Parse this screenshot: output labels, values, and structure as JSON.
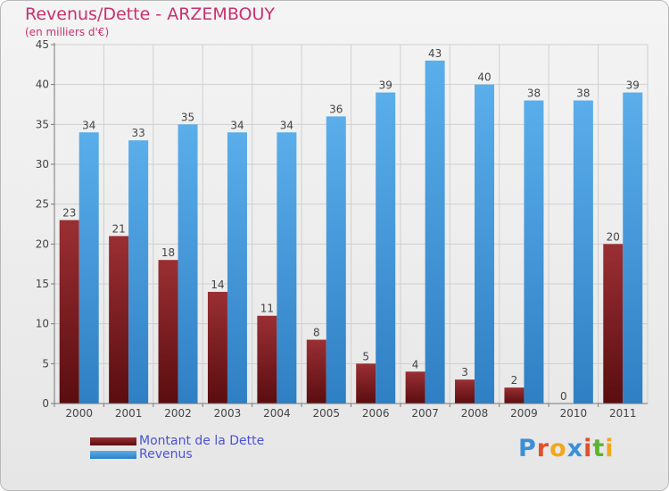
{
  "title": "Revenus/Dette - ARZEMBOUY",
  "subtitle": "(en milliers d'€)",
  "brand": "Proxiti",
  "chart_data": {
    "type": "bar",
    "categories": [
      "2000",
      "2001",
      "2002",
      "2003",
      "2004",
      "2005",
      "2006",
      "2007",
      "2008",
      "2009",
      "2010",
      "2011"
    ],
    "series": [
      {
        "name": "Montant de la Dette",
        "values": [
          23,
          21,
          18,
          14,
          11,
          8,
          5,
          4,
          3,
          2,
          0,
          20
        ],
        "color": "#7a1a1e"
      },
      {
        "name": "Revenus",
        "values": [
          34,
          33,
          35,
          34,
          34,
          36,
          39,
          43,
          40,
          38,
          38,
          39
        ],
        "color": "#4a9fe0"
      }
    ],
    "ylim": [
      0,
      45
    ],
    "yticks": [
      0,
      5,
      10,
      15,
      20,
      25,
      30,
      35,
      40,
      45
    ],
    "grid": true,
    "legend_position": "bottom-left"
  },
  "colors": {
    "title": "#c8316f",
    "legend_text": "#4b53d8",
    "grid": "#cfcfcf"
  }
}
